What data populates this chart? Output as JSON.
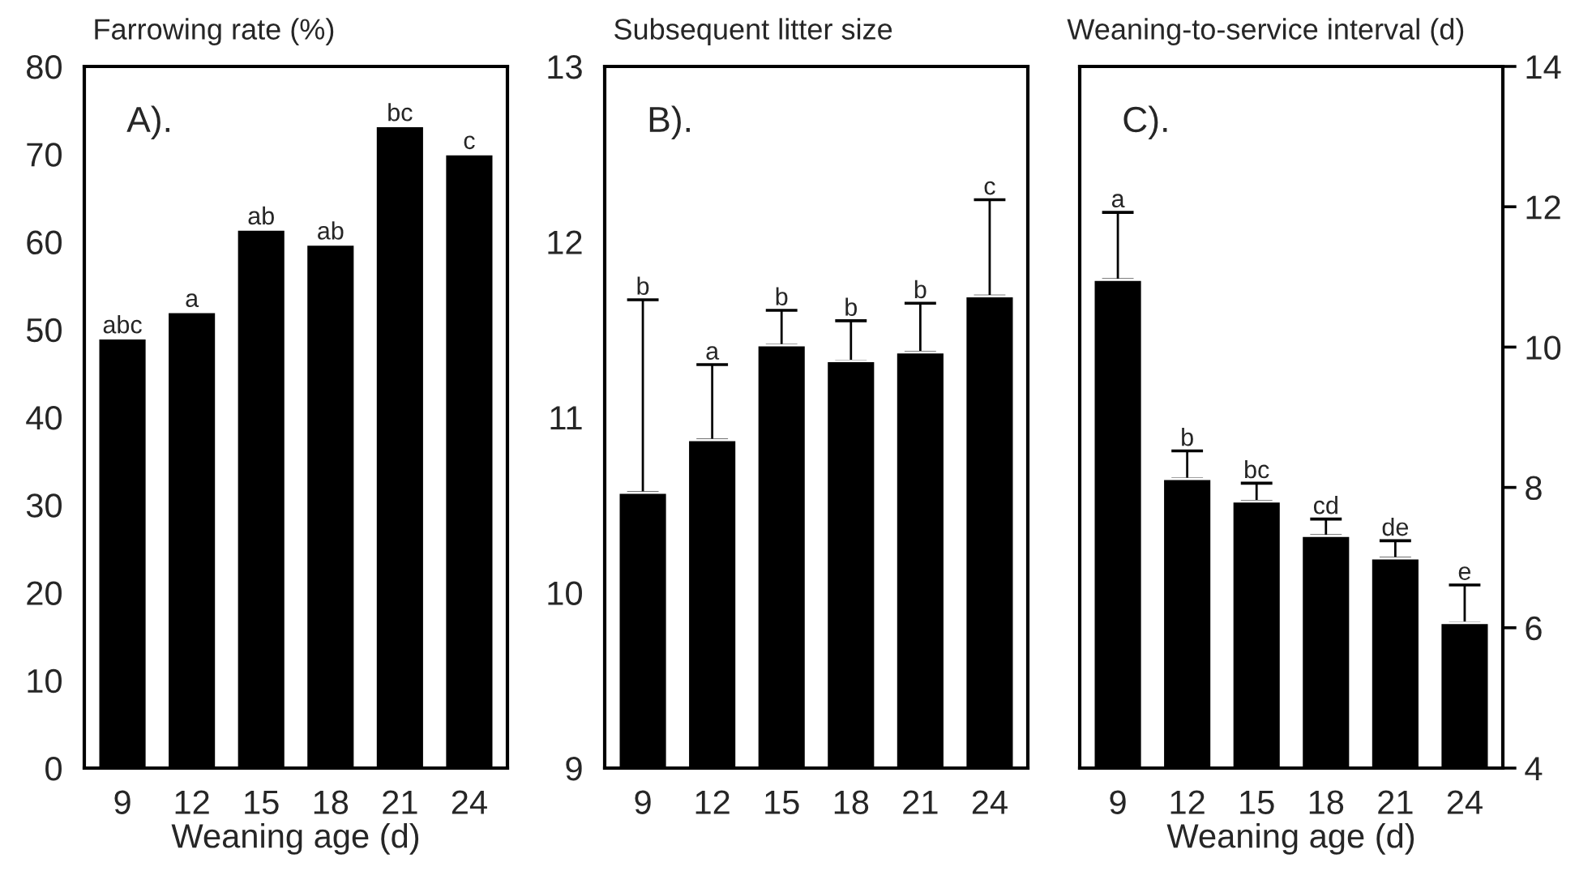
{
  "chart_data": [
    {
      "type": "bar",
      "title": "Farrowing rate (%)",
      "xlabel": "Weaning age (d)",
      "categories": [
        "9",
        "12",
        "15",
        "18",
        "21",
        "24"
      ],
      "series": [
        {
          "color": "#000000",
          "values": [
            49,
            52,
            61.4,
            59.7,
            73.2,
            70
          ]
        }
      ],
      "ylim": [
        0,
        80
      ],
      "yticks": [
        0,
        10,
        20,
        30,
        40,
        50,
        60,
        70,
        80
      ],
      "grid": false,
      "annotations": [
        "A).",
        {
          "text": "abc",
          "x": "9",
          "y": 49
        },
        {
          "text": "a",
          "x": "12",
          "y": 52
        },
        {
          "text": "ab",
          "x": "15",
          "y": 61.4
        },
        {
          "text": "ab",
          "x": "18",
          "y": 59.7
        },
        {
          "text": "bc",
          "x": "21",
          "y": 73.2
        },
        {
          "text": "c",
          "x": "24",
          "y": 70
        }
      ]
    },
    {
      "type": "bar",
      "title": "Subsequent litter size",
      "categories": [
        "9",
        "12",
        "15",
        "18",
        "21",
        "24"
      ],
      "series": [
        {
          "color": "#000000",
          "values": [
            10.57,
            10.87,
            11.41,
            11.32,
            11.37,
            11.69
          ],
          "errors": [
            [
              10.57,
              11.67
            ],
            [
              10.87,
              11.3
            ],
            [
              11.41,
              11.61
            ],
            [
              11.32,
              11.55
            ],
            [
              11.37,
              11.65
            ],
            [
              11.69,
              12.24
            ]
          ]
        }
      ],
      "ylim": [
        9,
        13
      ],
      "yticks": [
        9,
        10,
        11,
        12,
        13
      ],
      "grid": false,
      "annotations": [
        "B).",
        {
          "text": "b",
          "x": "9",
          "y": 11.67
        },
        {
          "text": "a",
          "x": "12",
          "y": 11.3
        },
        {
          "text": "b",
          "x": "15",
          "y": 11.61
        },
        {
          "text": "b",
          "x": "18",
          "y": 11.55
        },
        {
          "text": "b",
          "x": "21",
          "y": 11.65
        },
        {
          "text": "c",
          "x": "24",
          "y": 12.24
        }
      ]
    },
    {
      "type": "bar",
      "title": "Weaning-to-service interval (d)",
      "xlabel": "Weaning age (d)",
      "categories": [
        "9",
        "12",
        "15",
        "18",
        "21",
        "24"
      ],
      "series": [
        {
          "color": "#000000",
          "values": [
            10.96,
            8.12,
            7.8,
            7.31,
            6.99,
            6.07
          ],
          "errors": [
            [
              10.96,
              11.92
            ],
            [
              8.12,
              8.52
            ],
            [
              7.8,
              8.06
            ],
            [
              7.31,
              7.55
            ],
            [
              6.99,
              7.24
            ],
            [
              6.07,
              6.61
            ]
          ]
        }
      ],
      "ylim": [
        4,
        14
      ],
      "yticks": [
        4,
        6,
        8,
        10,
        12,
        14
      ],
      "grid": false,
      "annotations": [
        "C).",
        {
          "text": "a",
          "x": "9",
          "y": 11.92
        },
        {
          "text": "b",
          "x": "12",
          "y": 8.52
        },
        {
          "text": "bc",
          "x": "15",
          "y": 8.06
        },
        {
          "text": "cd",
          "x": "18",
          "y": 7.55
        },
        {
          "text": "de",
          "x": "21",
          "y": 7.24
        },
        {
          "text": "e",
          "x": "24",
          "y": 6.61
        }
      ]
    }
  ]
}
